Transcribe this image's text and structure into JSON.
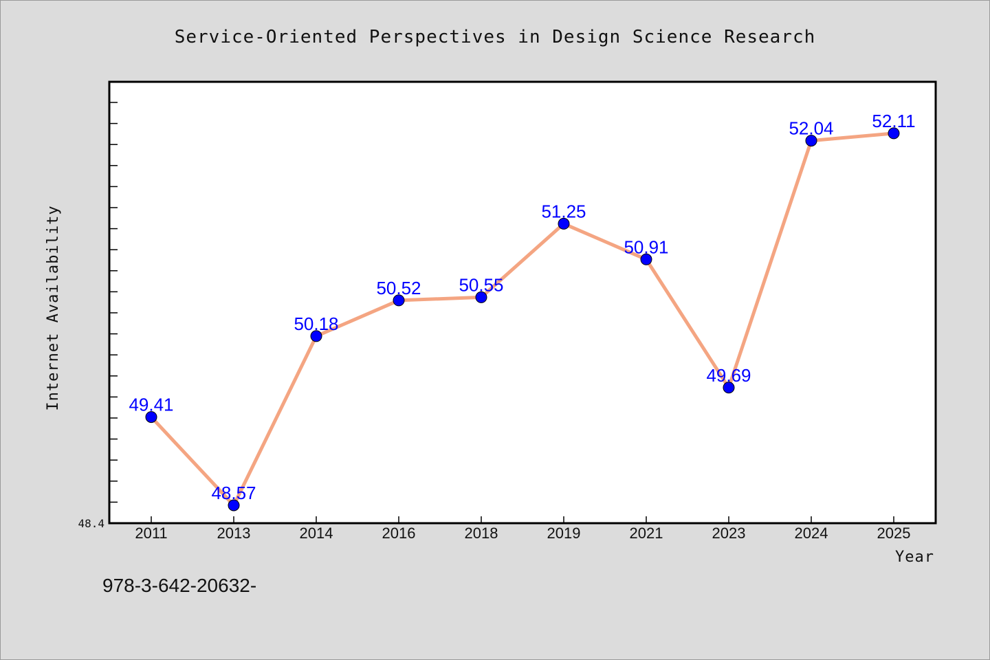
{
  "chart_data": {
    "type": "line",
    "title": "Service-Oriented Perspectives in Design Science Research",
    "xlabel": "Year",
    "ylabel": "Internet Availability",
    "categories": [
      "2011",
      "2013",
      "2014",
      "2016",
      "2018",
      "2019",
      "2021",
      "2023",
      "2024",
      "2025"
    ],
    "values": [
      49.41,
      48.57,
      50.18,
      50.52,
      50.55,
      51.25,
      50.91,
      49.69,
      52.04,
      52.11
    ],
    "data_labels": [
      "49.41",
      "48.57",
      "50.18",
      "50.52",
      "50.55",
      "51.25",
      "50.91",
      "49.69",
      "52.04",
      "52.11"
    ],
    "ylim": [
      48.4,
      52.6
    ],
    "y_tick_label": "48.4",
    "grid": false,
    "line_color": "#f4a582",
    "marker_color": "#0000ff",
    "label_color": "#0000ff"
  },
  "footer_text": "978-3-642-20632-"
}
